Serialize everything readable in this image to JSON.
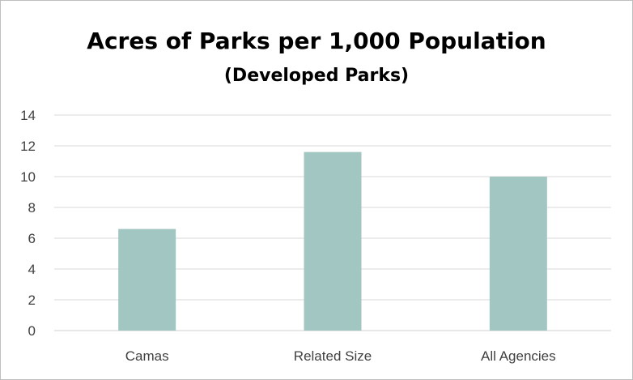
{
  "chart_data": {
    "type": "bar",
    "title": "Acres of Parks per 1,000 Population",
    "subtitle": "(Developed Parks)",
    "categories": [
      "Camas",
      "Related Size",
      "All Agencies"
    ],
    "values": [
      6.6,
      11.6,
      10.0
    ],
    "yticks": [
      "0",
      "2",
      "4",
      "6",
      "8",
      "10",
      "12",
      "14"
    ],
    "ylim": [
      0,
      14
    ],
    "grid": true,
    "legend": "none",
    "bar_color": "#a2c6c2",
    "grid_color": "#d9d9d9"
  }
}
